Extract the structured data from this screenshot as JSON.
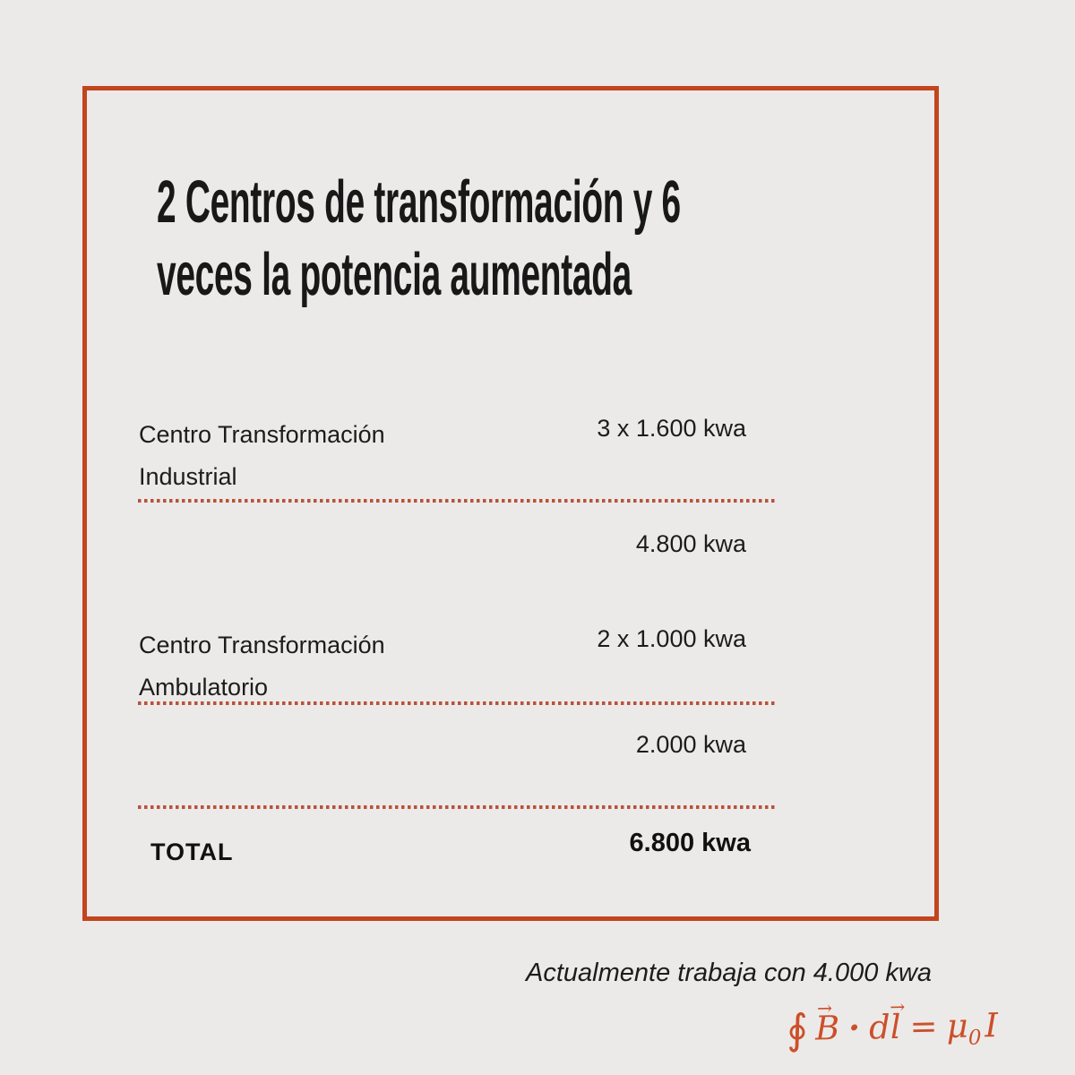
{
  "slide": {
    "title": {
      "line1": "2 Centros de transformación y 6",
      "line2": "veces la potencia aumentada"
    },
    "entries": [
      {
        "name_line1": "Centro Transformación",
        "name_line2": "Industrial",
        "capacity": "3 x 1.600 kwa",
        "subtotal": "4.800 kwa"
      },
      {
        "name_line1": "Centro Transformación",
        "name_line2": "Ambulatorio",
        "capacity": "2 x 1.000 kwa",
        "subtotal": "2.000 kwa"
      }
    ],
    "total": {
      "label": "TOTAL",
      "value": "6.800 kwa"
    }
  },
  "footer": {
    "note": "Actualmente trabaja con 4.000 kwa",
    "formula": {
      "oint": "∮",
      "B": "B",
      "dot": "·",
      "d": "d",
      "l": "l",
      "equals": "=",
      "mu": "μ",
      "zero": "0",
      "I": "I",
      "arrow": "→"
    }
  },
  "colors": {
    "background": "#ECEAE8",
    "frame_border": "#C2451E",
    "dotted_divider": "#B8523B",
    "formula_ink": "#CC4F2A",
    "text": "#1C1C1C"
  }
}
